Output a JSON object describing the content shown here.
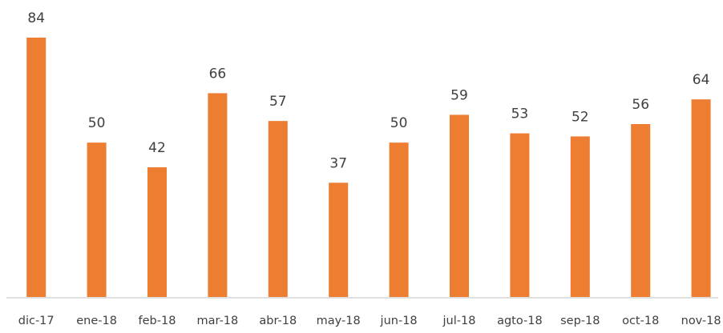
{
  "chart_data": {
    "type": "bar",
    "categories": [
      "dic-17",
      "ene-18",
      "feb-18",
      "mar-18",
      "abr-18",
      "may-18",
      "jun-18",
      "jul-18",
      "agto-18",
      "sep-18",
      "oct-18",
      "nov-18"
    ],
    "values": [
      84,
      50,
      42,
      66,
      57,
      37,
      50,
      59,
      53,
      52,
      56,
      64
    ],
    "color": "#ed7d31"
  }
}
